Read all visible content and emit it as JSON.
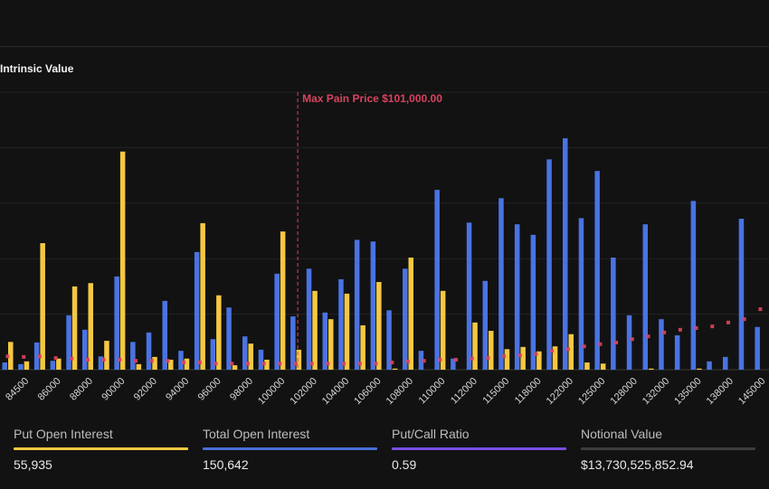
{
  "legend": {
    "intrinsic_label": "Intrinsic Value"
  },
  "chart_data": {
    "type": "bar",
    "ylim": [
      0,
      500
    ],
    "y_gridlines": [
      100,
      200,
      300,
      400,
      500
    ],
    "grid": true,
    "y_axis_labels_shown": false,
    "categories": [
      "",
      "84500",
      "",
      "86000",
      "",
      "88000",
      "",
      "90000",
      "",
      "92000",
      "",
      "94000",
      "",
      "96000",
      "",
      "98000",
      "",
      "100000",
      "",
      "102000",
      "",
      "104000",
      "",
      "106000",
      "",
      "108000",
      "",
      "110000",
      "",
      "112000",
      "",
      "115000",
      "",
      "118000",
      "",
      "122000",
      "",
      "125000",
      "",
      "128000",
      "",
      "132000",
      "",
      "135000",
      "",
      "138000",
      "",
      "145000"
    ],
    "series": [
      {
        "type": "bar",
        "color": "#4a73e3",
        "values": [
          13,
          10,
          49,
          16,
          98,
          72,
          24,
          168,
          50,
          67,
          124,
          34,
          212,
          55,
          112,
          60,
          36,
          173,
          96,
          182,
          103,
          163,
          234,
          231,
          107,
          182,
          34,
          324,
          20,
          265,
          160,
          309,
          262,
          243,
          379,
          417,
          273,
          358,
          202,
          98,
          262,
          91,
          62,
          304,
          15,
          23,
          272,
          77
        ]
      },
      {
        "type": "bar",
        "color": "#f5c842",
        "values": [
          50,
          15,
          228,
          20,
          150,
          156,
          52,
          393,
          10,
          23,
          18,
          20,
          264,
          134,
          8,
          47,
          18,
          249,
          36,
          142,
          91,
          137,
          80,
          158,
          2,
          202,
          0,
          142,
          0,
          85,
          70,
          37,
          41,
          33,
          42,
          64,
          13,
          11,
          0,
          0,
          2,
          0,
          0,
          2,
          0,
          0,
          0,
          0
        ]
      },
      {
        "type": "scatter",
        "name": "Intrinsic Value",
        "color": "#e0445e",
        "values": [
          24,
          23,
          24,
          21,
          20,
          18,
          18,
          18,
          16,
          16,
          16,
          13,
          13,
          11,
          11,
          11,
          11,
          11,
          11,
          11,
          11,
          11,
          11,
          11,
          13,
          15,
          16,
          18,
          18,
          20,
          21,
          24,
          26,
          28,
          34,
          37,
          42,
          46,
          49,
          55,
          60,
          67,
          72,
          75,
          78,
          85,
          91,
          109
        ]
      }
    ],
    "markline": {
      "category_index": 18,
      "label": "Max Pain Price $101,000.00",
      "color": "#d9435f"
    }
  },
  "stats": [
    {
      "label": "Put Open Interest",
      "value": "55,935",
      "color": "#f5c842"
    },
    {
      "label": "Total Open Interest",
      "value": "150,642",
      "color": "#4a6fd8"
    },
    {
      "label": "Put/Call Ratio",
      "value": "0.59",
      "color": "#7a4fe3"
    },
    {
      "label": "Notional Value",
      "value": "$13,730,525,852.94",
      "color": "#3d3d3d"
    }
  ]
}
